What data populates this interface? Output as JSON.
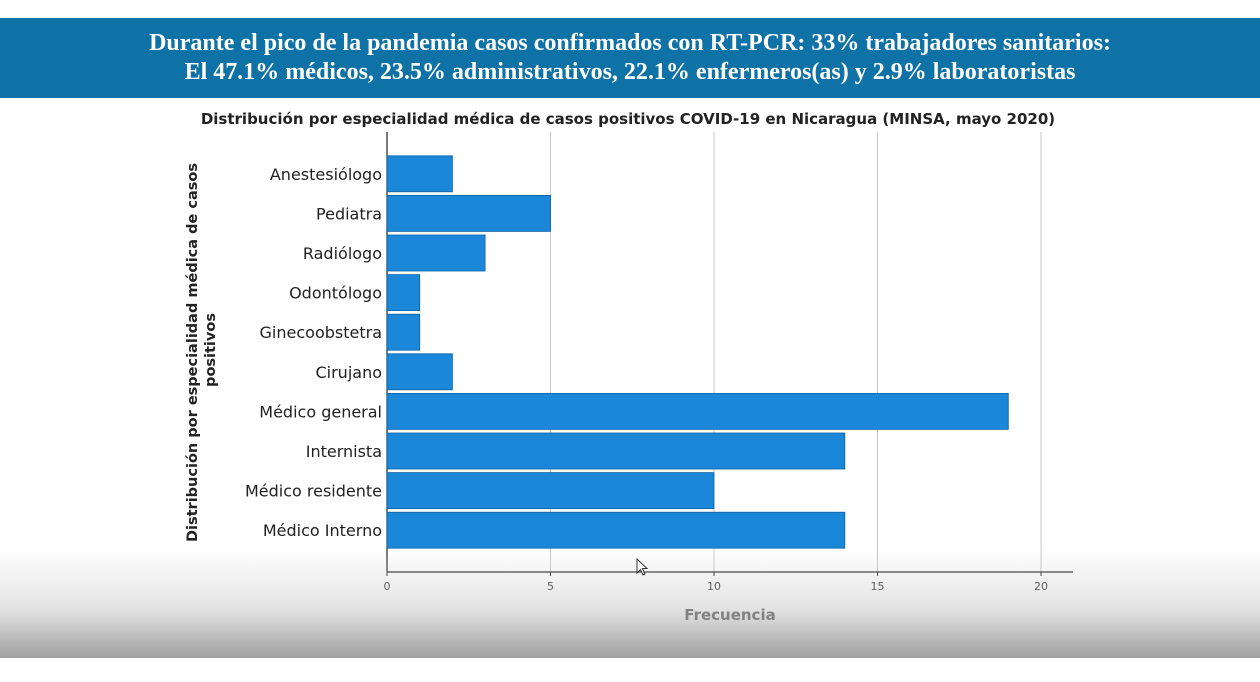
{
  "banner": {
    "line1": "Durante el pico de la pandemia casos confirmados con RT-PCR: 33% trabajadores sanitarios:",
    "line2": "El 47.1% médicos, 23.5% administrativos, 22.1% enfermeros(as) y 2.9% laboratoristas",
    "background_color": "#0f72a6"
  },
  "chart_data": {
    "type": "bar",
    "orientation": "horizontal",
    "title": "Distribución por especialidad médica de casos positivos COVID-19 en Nicaragua (MINSA, mayo 2020)",
    "xlabel": "Frecuencia",
    "ylabel": "Distribución por especialidad médica de casos positivos",
    "categories": [
      "Anestesiólogo",
      "Pediatra",
      "Radiólogo",
      "Odontólogo",
      "Ginecoobstetra",
      "Cirujano",
      "Médico general",
      "Internista",
      "Médico residente",
      "Médico Interno"
    ],
    "values": [
      2,
      5,
      3,
      1,
      1,
      2,
      19,
      14,
      10,
      14
    ],
    "xlim": [
      0,
      21
    ],
    "xticks": [
      0,
      5,
      10,
      15,
      20
    ],
    "grid": "vertical",
    "bar_color": "#1a87d9"
  }
}
